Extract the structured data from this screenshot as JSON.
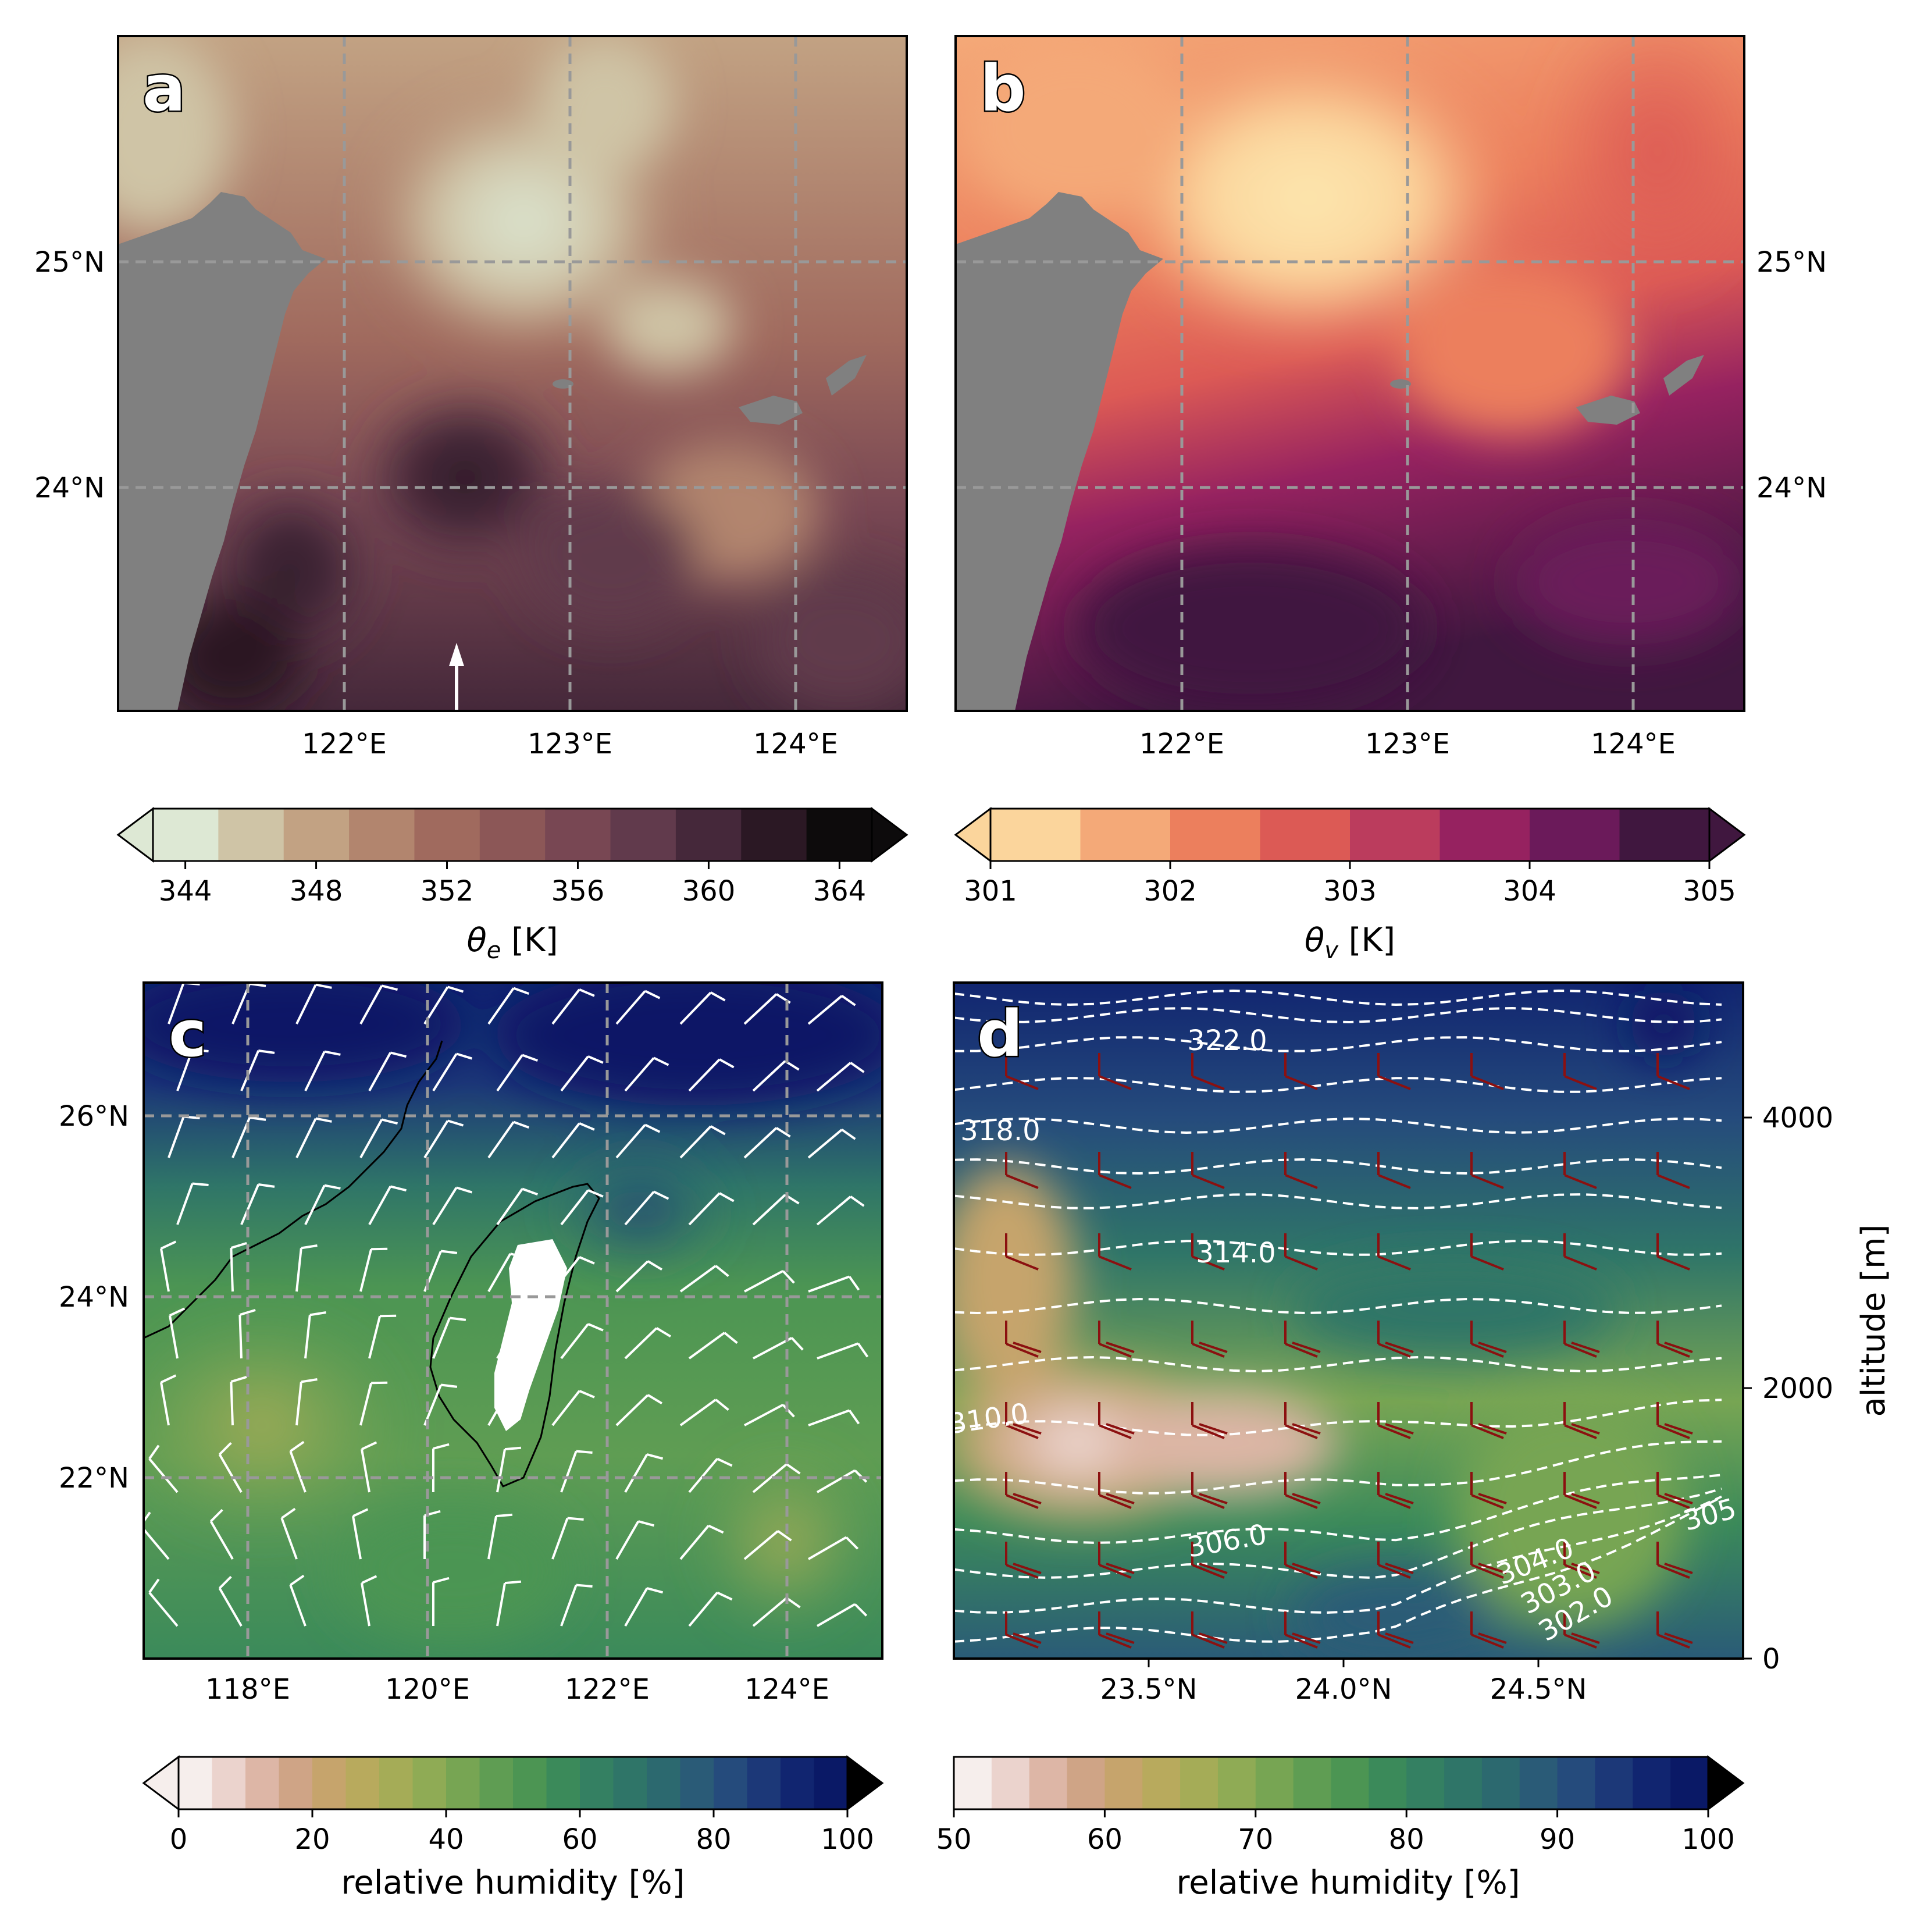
{
  "chart_data": [
    {
      "panel": "a",
      "type": "heatmap",
      "panel_label": "a",
      "xticks": [
        "122°E",
        "123°E",
        "124°E"
      ],
      "yticks": [
        "25°N",
        "24°N"
      ],
      "colorbar_label_prefix": "θ",
      "colorbar_label_sub": "e",
      "colorbar_label_suffix": " [K]",
      "colorbar_ticks": [
        "344",
        "348",
        "352",
        "356",
        "360",
        "364"
      ],
      "colorbar_colors": [
        "#dde8d4",
        "#cfc4a6",
        "#c2a283",
        "#b2856e",
        "#a06a5e",
        "#8c5757",
        "#784753",
        "#613a4c",
        "#45283a",
        "#2b1824",
        "#0d0b0c"
      ]
    },
    {
      "panel": "b",
      "type": "heatmap",
      "panel_label": "b",
      "xticks": [
        "122°E",
        "123°E",
        "124°E"
      ],
      "yticks": [
        "25°N",
        "24°N"
      ],
      "colorbar_label_prefix": "θ",
      "colorbar_label_sub": "v",
      "colorbar_label_suffix": " [K]",
      "colorbar_ticks": [
        "301",
        "302",
        "303",
        "304",
        "305"
      ],
      "colorbar_colors": [
        "#fbd59c",
        "#f4a978",
        "#ec7f5d",
        "#dc5a55",
        "#bb3c5d",
        "#962260",
        "#6b1a5a",
        "#40173f"
      ]
    },
    {
      "panel": "c",
      "type": "heatmap",
      "panel_label": "c",
      "xticks": [
        "118°E",
        "120°E",
        "122°E",
        "124°E"
      ],
      "yticks": [
        "26°N",
        "24°N",
        "22°N"
      ],
      "colorbar_label": "relative humidity [%]",
      "colorbar_ticks": [
        "0",
        "20",
        "40",
        "60",
        "80",
        "100"
      ],
      "colorbar_colors": [
        "#f6eeec",
        "#ebd3cd",
        "#ddb6a6",
        "#cfa486",
        "#c6a46c",
        "#b8aa5d",
        "#a5ac57",
        "#8fab55",
        "#77a553",
        "#5f9d53",
        "#4c9553",
        "#3b8a5a",
        "#348062",
        "#2f7568",
        "#2c696f",
        "#2a5b77",
        "#254b7c",
        "#1c3878",
        "#112570",
        "#0a1966"
      ],
      "contour_labels": []
    },
    {
      "panel": "d",
      "type": "heatmap",
      "panel_label": "d",
      "xticks": [
        "23.5°N",
        "24.0°N",
        "24.5°N"
      ],
      "yticks": [
        "0",
        "2000",
        "4000"
      ],
      "ylabel": "altitude [m]",
      "ylim": [
        0,
        5000
      ],
      "colorbar_label": "relative humidity [%]",
      "colorbar_ticks": [
        "50",
        "60",
        "70",
        "80",
        "90",
        "100"
      ],
      "colorbar_colors": [
        "#f6eeec",
        "#ebd3cd",
        "#ddb6a6",
        "#cfa486",
        "#c6a46c",
        "#b8aa5d",
        "#a5ac57",
        "#8fab55",
        "#77a553",
        "#5f9d53",
        "#4c9553",
        "#3b8a5a",
        "#348062",
        "#2f7568",
        "#2c696f",
        "#2a5b77",
        "#254b7c",
        "#1c3878",
        "#112570",
        "#0a1966"
      ],
      "contour_labels": [
        "322.0",
        "318.0",
        "314.0",
        "310.0",
        "306.0",
        "304.0",
        "303.0",
        "302.0",
        "305"
      ]
    }
  ]
}
